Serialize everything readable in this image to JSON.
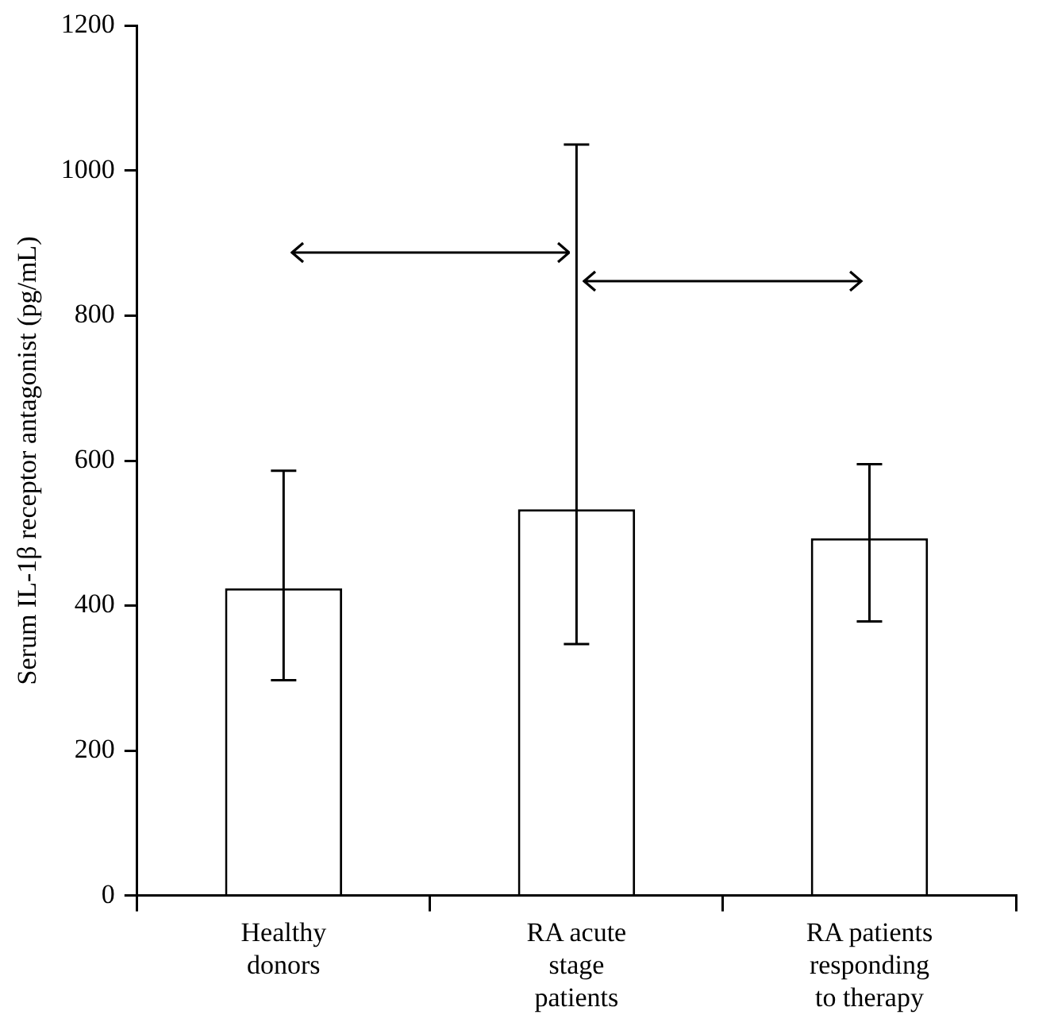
{
  "chart_data": {
    "type": "bar",
    "ylabel": "Serum IL-1β receptor antagonist (pg/mL)",
    "categories": [
      "Healthy donors",
      "RA acute stage patients",
      "RA patients responding to therapy"
    ],
    "values": [
      424,
      533,
      493
    ],
    "errors": [
      [
        297,
        586
      ],
      [
        347,
        1036
      ],
      [
        378,
        595
      ]
    ],
    "colors": [
      "#ffffff",
      "#ffffff",
      "#ffffff"
    ],
    "ylim": [
      0,
      1200
    ],
    "yticks": [
      0,
      200,
      400,
      600,
      800,
      1000,
      1200
    ],
    "grid": false,
    "legend": false
  }
}
